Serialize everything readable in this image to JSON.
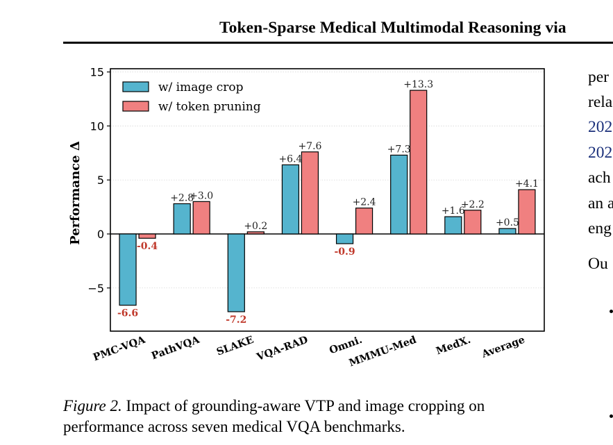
{
  "header": {
    "title": "Token-Sparse Medical Multimodal Reasoning via"
  },
  "chart_data": {
    "type": "bar",
    "categories": [
      "PMC-VQA",
      "PathVQA",
      "SLAKE",
      "VQA-RAD",
      "Omni.",
      "MMMU-Med",
      "MedX.",
      "Average"
    ],
    "series": [
      {
        "name": "w/ image crop",
        "color": "#55b4ce",
        "values": [
          -6.6,
          2.8,
          -7.2,
          6.4,
          -0.9,
          7.3,
          1.6,
          0.5
        ],
        "labels": [
          "-6.6",
          "+2.8",
          "-7.2",
          "+6.4",
          "-0.9",
          "+7.3",
          "+1.6",
          "+0.5"
        ]
      },
      {
        "name": "w/ token pruning",
        "color": "#f08080",
        "values": [
          -0.4,
          3.0,
          0.2,
          7.6,
          2.4,
          13.3,
          2.2,
          4.1
        ],
        "labels": [
          "-0.4",
          "+3.0",
          "+0.2",
          "+7.6",
          "+2.4",
          "+13.3",
          "+2.2",
          "+4.1"
        ]
      }
    ],
    "ylabel": "Performance Δ",
    "ylim": [
      -9,
      15.3
    ],
    "yticks": [
      -5,
      0,
      5,
      10,
      15
    ],
    "ytick_labels": [
      "−5",
      "0",
      "5",
      "10",
      "15"
    ],
    "negative_label_color": "#c0392b",
    "legend_position": "top-left",
    "grid": "horizontal dotted"
  },
  "caption": {
    "figure_label": "Figure 2.",
    "text_line1": " Impact of grounding-aware VTP and image cropping on",
    "text_line2": "performance across seven medical VQA benchmarks."
  },
  "right_column": {
    "lines": [
      {
        "text": "per",
        "cite": false
      },
      {
        "text": "rela",
        "cite": false
      },
      {
        "text": "202",
        "cite": true
      },
      {
        "text": "202",
        "cite": true
      },
      {
        "text": "ach",
        "cite": false
      },
      {
        "text": "an a",
        "cite": false
      },
      {
        "text": "eng",
        "cite": false
      },
      {
        "text": "Ou",
        "cite": false
      }
    ]
  }
}
